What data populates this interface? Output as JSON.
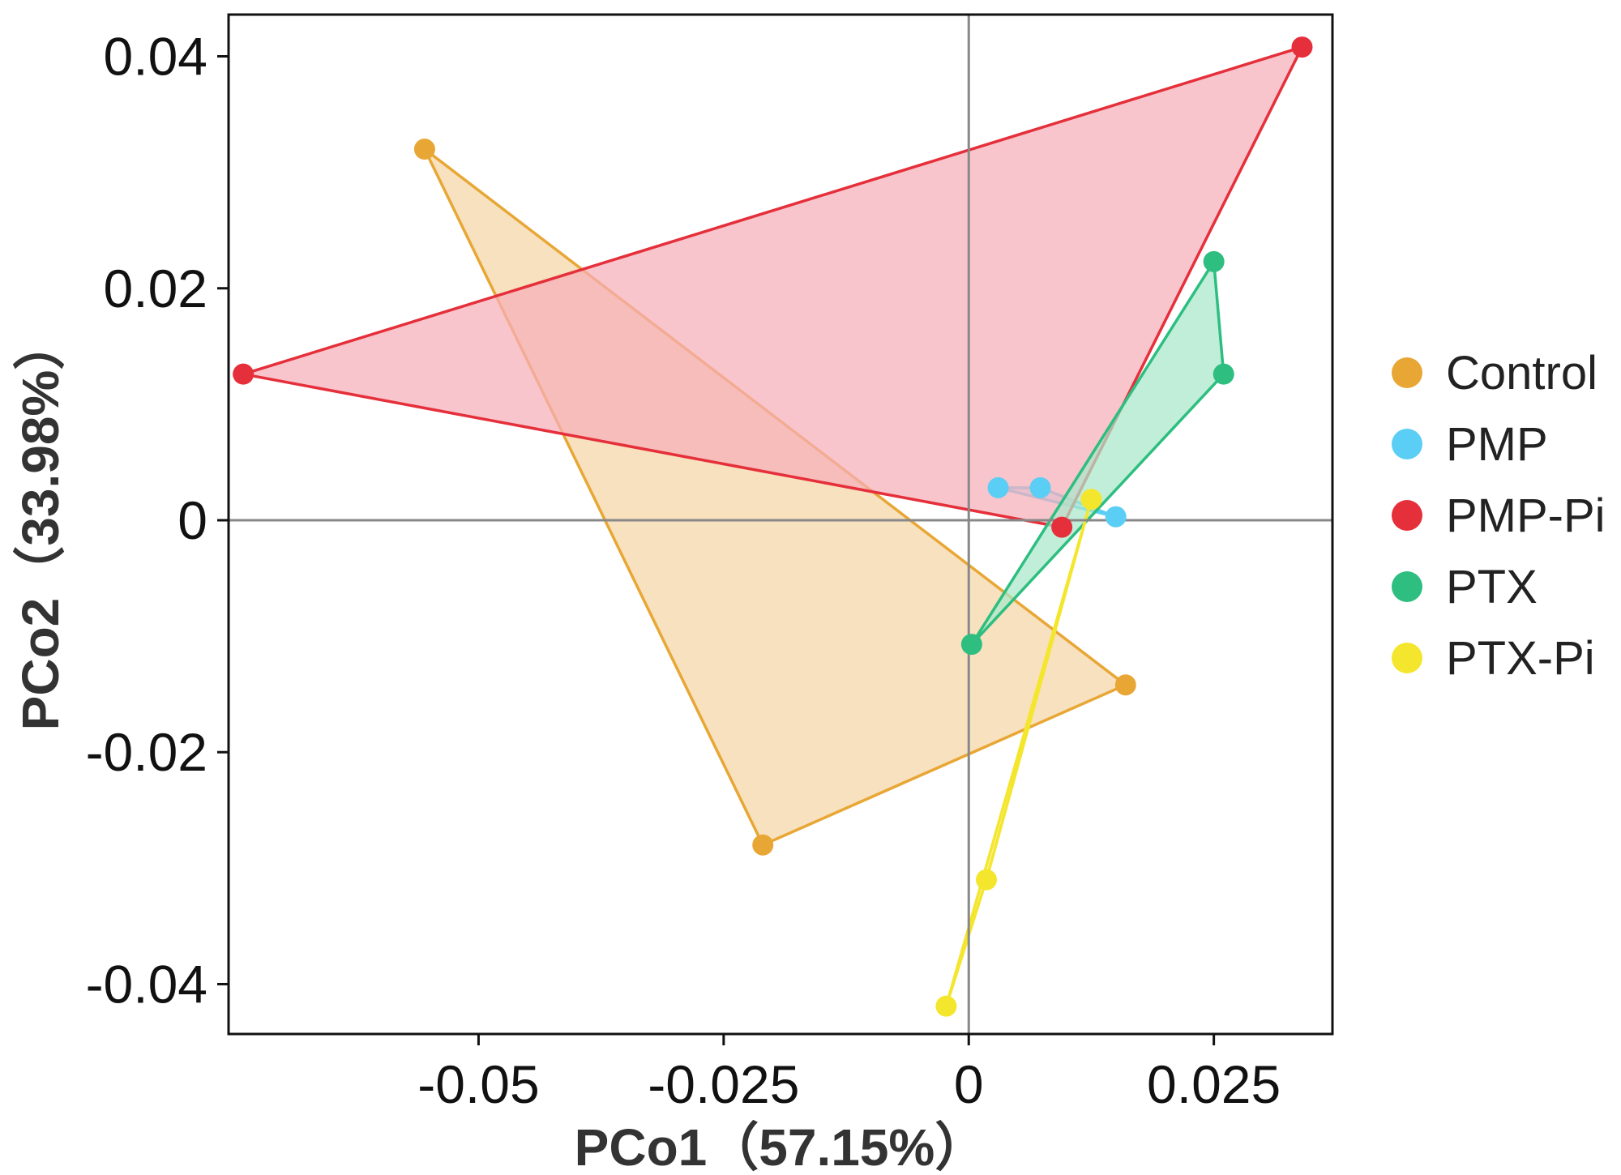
{
  "chart_data": {
    "type": "scatter",
    "title": "",
    "xlabel": "PCo1（57.15%）",
    "ylabel": "PCo2（33.98%）",
    "xlim": [
      -0.0755,
      0.0371
    ],
    "ylim": [
      -0.0443,
      0.0436
    ],
    "x_ticks": [
      -0.05,
      -0.025,
      0,
      0.025
    ],
    "x_tick_labels": [
      "-0.05",
      "-0.025",
      "0",
      "0.025"
    ],
    "y_ticks": [
      0.04,
      0.02,
      0,
      -0.02,
      -0.04
    ],
    "y_tick_labels": [
      "0.04",
      "0.02",
      "0",
      "-0.02",
      "-0.04"
    ],
    "reference_lines": {
      "x": 0,
      "y": 0
    },
    "grid": false,
    "legend_position": "right",
    "series": [
      {
        "name": "Control",
        "color": "#E8A735",
        "fill": "#F5D5A5",
        "points": [
          [
            -0.0555,
            0.032
          ],
          [
            -0.021,
            -0.028
          ],
          [
            0.016,
            -0.0142
          ]
        ]
      },
      {
        "name": "PMP",
        "color": "#5BCEF5",
        "fill": "#B5E6F7",
        "points": [
          [
            0.003,
            0.0028
          ],
          [
            0.0073,
            0.0028
          ],
          [
            0.015,
            0.0003
          ]
        ]
      },
      {
        "name": "PMP-Pi",
        "color": "#E52F3A",
        "fill": "#F7AFBA",
        "points": [
          [
            -0.074,
            0.0126
          ],
          [
            0.034,
            0.0408
          ],
          [
            0.0095,
            -0.0006
          ]
        ]
      },
      {
        "name": "PTX",
        "color": "#2DBE80",
        "fill": "#A9E7CB",
        "points": [
          [
            0.025,
            0.0223
          ],
          [
            0.026,
            0.0126
          ],
          [
            0.0003,
            -0.0107
          ]
        ]
      },
      {
        "name": "PTX-Pi",
        "color": "#F4E62C",
        "fill": "#F8F0A0",
        "points": [
          [
            0.0125,
            0.0018
          ],
          [
            0.0018,
            -0.031
          ],
          [
            -0.0023,
            -0.0419
          ]
        ]
      }
    ]
  }
}
